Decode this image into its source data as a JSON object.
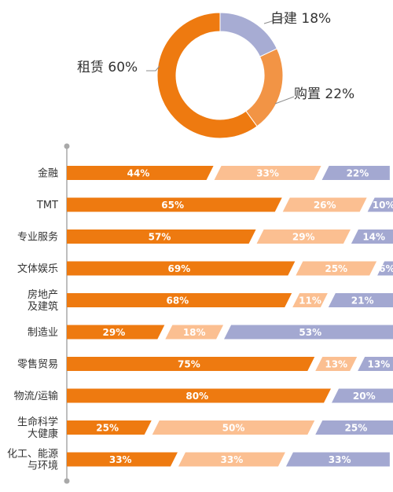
{
  "colors": {
    "rent": "#EE7A10",
    "build": "#A7ACD3",
    "buy": "#F29445",
    "bar_rent": "#EE7A10",
    "bar_buy": "#FBBF91",
    "bar_build": "#A3A8D1",
    "label_line": "#8C8C8C",
    "axis": "#A9A9A9",
    "text": "#333333"
  },
  "chart_data": [
    {
      "type": "pie",
      "donut": true,
      "slices": [
        {
          "label": "自建 18%",
          "value": 18,
          "color_key": "build"
        },
        {
          "label": "购置 22%",
          "value": 22,
          "color_key": "buy"
        },
        {
          "label": "租赁 60%",
          "value": 60,
          "color_key": "rent"
        }
      ]
    },
    {
      "type": "bar",
      "orientation": "horizontal",
      "stacked": true,
      "percent_stacked": true,
      "categories": [
        "金融",
        "TMT",
        "专业服务",
        "文体娱乐",
        "房地产\n及建筑",
        "制造业",
        "零售贸易",
        "物流/运输",
        "生命科学\n大健康",
        "化工、能源\n与环境"
      ],
      "series": [
        {
          "values": [
            44,
            65,
            57,
            69,
            68,
            29,
            75,
            80,
            25,
            33
          ],
          "labels": [
            "44%",
            "65%",
            "57%",
            "69%",
            "68%",
            "29%",
            "75%",
            "80%",
            "25%",
            "33%"
          ],
          "color_key": "bar_rent"
        },
        {
          "values": [
            33,
            26,
            29,
            25,
            11,
            18,
            13,
            0,
            50,
            33
          ],
          "labels": [
            "33%",
            "26%",
            "29%",
            "25%",
            "11%",
            "18%",
            "13%",
            "",
            "50%",
            "33%"
          ],
          "color_key": "bar_buy"
        },
        {
          "values": [
            22,
            10,
            14,
            6,
            21,
            53,
            13,
            20,
            25,
            33
          ],
          "labels": [
            "22%",
            "10%",
            "14%",
            "6%",
            "21%",
            "53%",
            "13%",
            "20%",
            "25%",
            "33%"
          ],
          "color_key": "bar_build"
        }
      ]
    }
  ]
}
